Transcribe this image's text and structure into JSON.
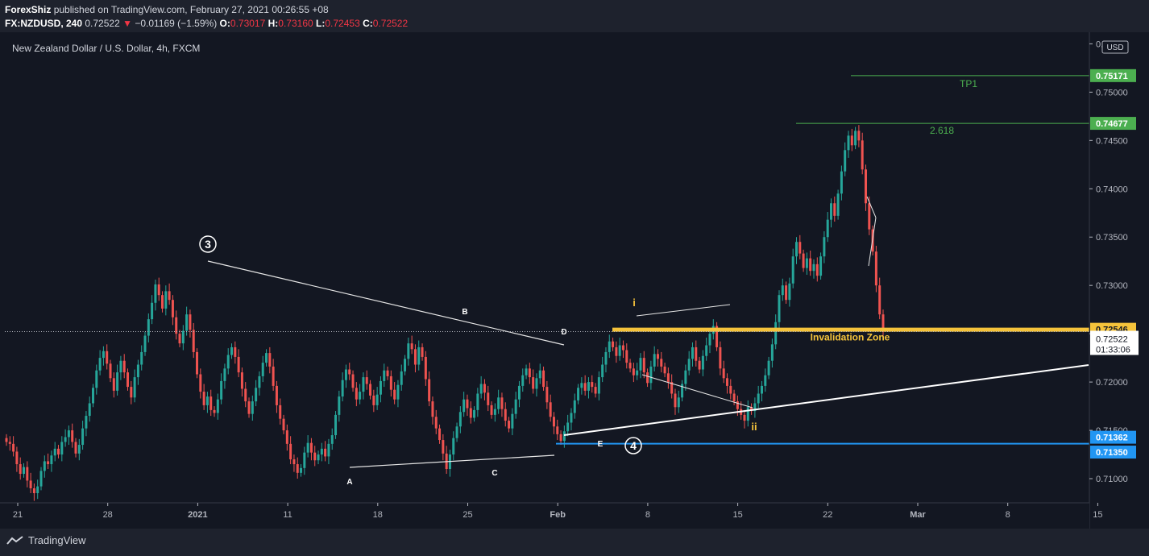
{
  "header": {
    "author": "ForexShiz",
    "published_text": "published on TradingView.com, February 27, 2021 00:26:55 +08",
    "symbol": "FX:NZDUSD, 240",
    "last": "0.72522",
    "change": "−0.01169 (−1.59%)",
    "o_label": "O:",
    "o_value": "0.73017",
    "h_label": "H:",
    "h_value": "0.73160",
    "l_label": "L:",
    "l_value": "0.72453",
    "c_label": "C:",
    "c_value": "0.72522"
  },
  "chart_title": "New Zealand Dollar / U.S. Dollar, 4h, FXCM",
  "currency_badge": "USD",
  "footer": {
    "brand": "TradingView"
  },
  "colors": {
    "background": "#131722",
    "up": "#26a69a",
    "down": "#ef5350",
    "tp_green": "#4caf50",
    "invalidation_yellow": "#f5c33b",
    "level_blue": "#2196f3",
    "text": "#d1d4dc"
  },
  "chart_data": {
    "type": "candlestick",
    "symbol": "NZDUSD",
    "timeframe": "4h",
    "ylim": [
      0.7075,
      0.7562
    ],
    "y_ticks": [
      "0.71000",
      "0.71500",
      "0.72000",
      "0.72500",
      "0.73000",
      "0.73500",
      "0.74000",
      "0.74500",
      "0.75000",
      "0.75500"
    ],
    "x_ticks": [
      "21",
      "28",
      "2021",
      "11",
      "18",
      "25",
      "Feb",
      "8",
      "15",
      "22",
      "Mar",
      "8",
      "15"
    ],
    "last_price": 0.72522,
    "countdown": "01:33:06",
    "price_labels": [
      {
        "value": "0.75171",
        "color": "#4caf50"
      },
      {
        "value": "0.74677",
        "color": "#4caf50"
      },
      {
        "value": "0.72546",
        "color": "#f5c33b"
      },
      {
        "value": "0.71362",
        "color": "#2196f3"
      },
      {
        "value": "0.71350",
        "color": "#2196f3"
      }
    ],
    "levels": [
      {
        "name": "TP1",
        "price": 0.75171
      },
      {
        "name": "2.618",
        "price": 0.74677
      },
      {
        "name": "Invalidation Zone",
        "price": 0.72546
      },
      {
        "name": "",
        "price": 0.71362
      }
    ],
    "wave_labels": [
      "3",
      "4",
      "i",
      "ii",
      "A",
      "B",
      "C",
      "D",
      "E"
    ],
    "closes": [
      0.7138,
      0.7136,
      0.7128,
      0.7115,
      0.7105,
      0.7112,
      0.7098,
      0.709,
      0.7085,
      0.7092,
      0.7108,
      0.7118,
      0.7115,
      0.7124,
      0.7131,
      0.7125,
      0.7138,
      0.7143,
      0.715,
      0.7138,
      0.7126,
      0.7135,
      0.7152,
      0.7165,
      0.7178,
      0.7194,
      0.7212,
      0.7225,
      0.7232,
      0.7219,
      0.7204,
      0.7191,
      0.721,
      0.7222,
      0.721,
      0.7195,
      0.7184,
      0.7205,
      0.7218,
      0.7231,
      0.7248,
      0.7265,
      0.7282,
      0.7301,
      0.729,
      0.7276,
      0.7294,
      0.7285,
      0.7267,
      0.725,
      0.724,
      0.7253,
      0.727,
      0.7254,
      0.7231,
      0.7208,
      0.719,
      0.7176,
      0.7185,
      0.7171,
      0.7168,
      0.7182,
      0.7201,
      0.7214,
      0.7228,
      0.7236,
      0.7226,
      0.721,
      0.7193,
      0.718,
      0.7167,
      0.718,
      0.7194,
      0.7206,
      0.722,
      0.723,
      0.7216,
      0.7196,
      0.7176,
      0.7162,
      0.715,
      0.7136,
      0.712,
      0.7115,
      0.7106,
      0.7111,
      0.7127,
      0.7137,
      0.7127,
      0.7119,
      0.7125,
      0.7131,
      0.7123,
      0.7136,
      0.7145,
      0.7166,
      0.7185,
      0.7202,
      0.7213,
      0.7208,
      0.7194,
      0.7182,
      0.719,
      0.7205,
      0.7198,
      0.7186,
      0.7176,
      0.7187,
      0.7201,
      0.7212,
      0.7206,
      0.7192,
      0.7182,
      0.7197,
      0.7211,
      0.7224,
      0.724,
      0.7234,
      0.7218,
      0.7236,
      0.7226,
      0.7203,
      0.718,
      0.7164,
      0.7152,
      0.714,
      0.7126,
      0.711,
      0.7125,
      0.7142,
      0.7154,
      0.7169,
      0.7182,
      0.7173,
      0.7163,
      0.7171,
      0.7188,
      0.7198,
      0.7189,
      0.7176,
      0.7166,
      0.7172,
      0.7184,
      0.7172,
      0.716,
      0.7152,
      0.7167,
      0.7182,
      0.7196,
      0.7207,
      0.7214,
      0.7205,
      0.7193,
      0.7204,
      0.7212,
      0.7195,
      0.7179,
      0.7164,
      0.7154,
      0.7146,
      0.7139,
      0.7149,
      0.7158,
      0.7168,
      0.7181,
      0.7194,
      0.7199,
      0.7191,
      0.72,
      0.7195,
      0.7188,
      0.7205,
      0.7218,
      0.7231,
      0.7242,
      0.7236,
      0.7227,
      0.7238,
      0.7233,
      0.722,
      0.7214,
      0.7207,
      0.7212,
      0.7225,
      0.721,
      0.7199,
      0.7216,
      0.7229,
      0.7224,
      0.7216,
      0.7209,
      0.72,
      0.7188,
      0.7174,
      0.7184,
      0.7198,
      0.7212,
      0.7224,
      0.7236,
      0.7222,
      0.7213,
      0.7227,
      0.7238,
      0.725,
      0.7258,
      0.7236,
      0.7214,
      0.7204,
      0.7196,
      0.7188,
      0.718,
      0.7172,
      0.7166,
      0.716,
      0.7174,
      0.717,
      0.7178,
      0.7188,
      0.7196,
      0.7207,
      0.7222,
      0.7239,
      0.7262,
      0.729,
      0.73,
      0.7285,
      0.7302,
      0.733,
      0.7345,
      0.7333,
      0.7318,
      0.7328,
      0.7315,
      0.7322,
      0.731,
      0.733,
      0.735,
      0.7368,
      0.7385,
      0.7372,
      0.7395,
      0.7418,
      0.744,
      0.7455,
      0.7445,
      0.746,
      0.745,
      0.742,
      0.7385,
      0.7358,
      0.7335,
      0.73,
      0.727,
      0.7252
    ]
  }
}
